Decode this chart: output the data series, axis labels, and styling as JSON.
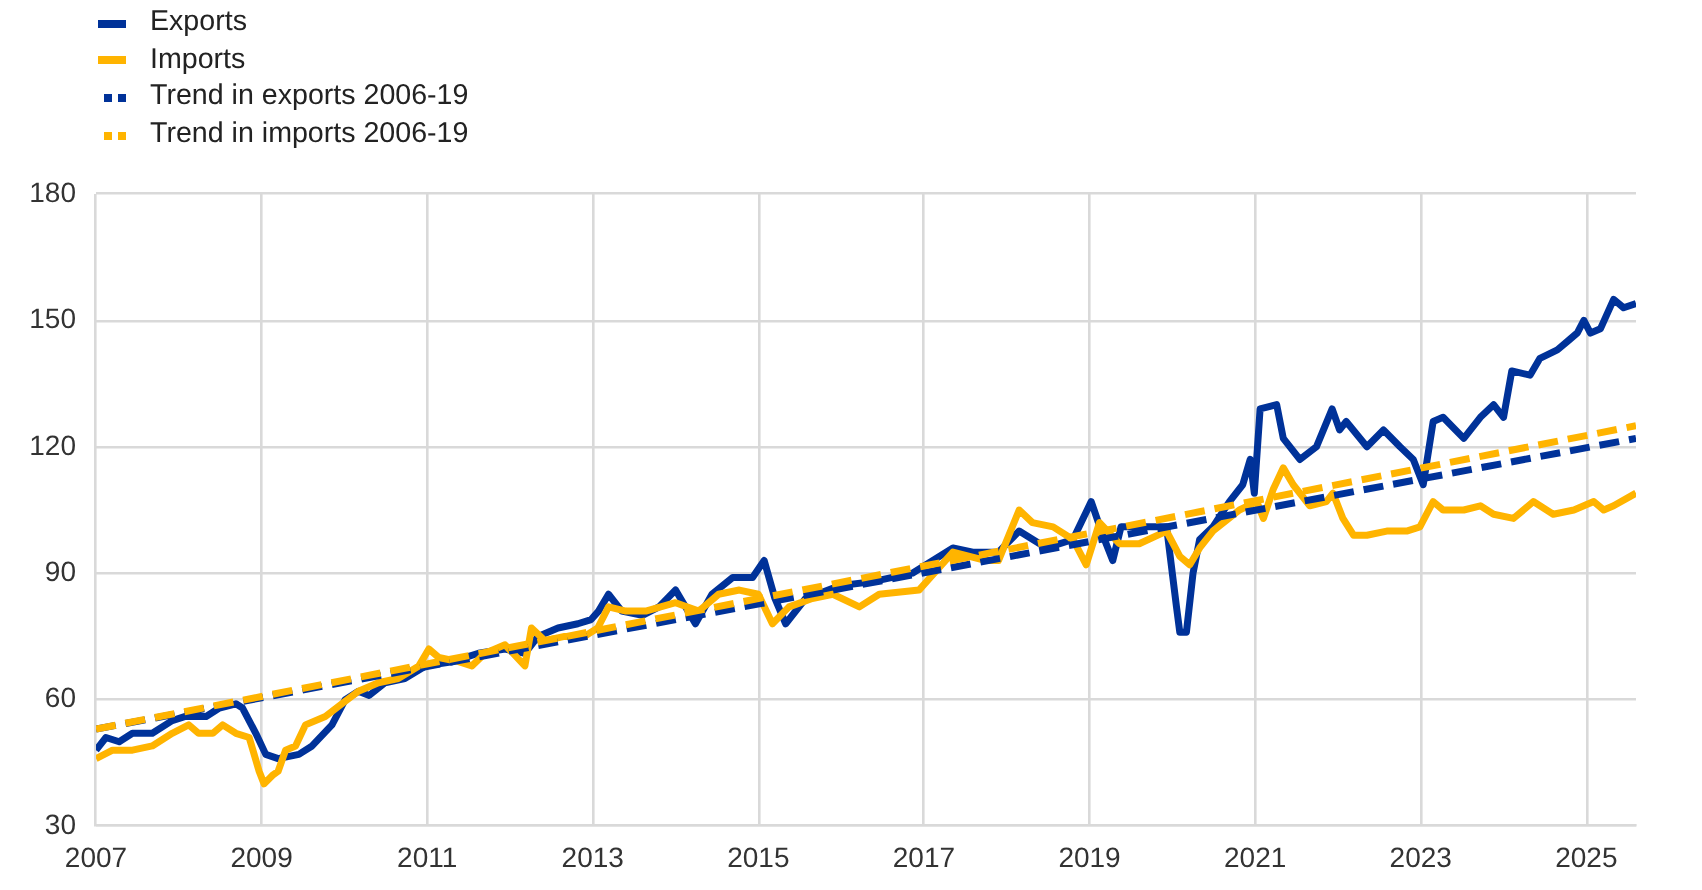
{
  "chart_data": {
    "type": "line",
    "legend": "top left",
    "grid": true,
    "xlim": [
      2007,
      2025.6
    ],
    "xticks": [
      2007,
      2009,
      2011,
      2013,
      2015,
      2017,
      2019,
      2021,
      2023,
      2025
    ],
    "ylim": [
      30,
      180
    ],
    "yticks": [
      30,
      60,
      90,
      120,
      150,
      180
    ],
    "series": [
      {
        "name": "Exports",
        "color": "#003299",
        "x": [
          2007.0,
          2007.12,
          2007.28,
          2007.44,
          2007.68,
          2007.92,
          2008.08,
          2008.33,
          2008.49,
          2008.69,
          2008.77,
          2008.93,
          2009.05,
          2009.2,
          2009.45,
          2009.61,
          2009.85,
          2010.01,
          2010.17,
          2010.3,
          2010.49,
          2010.73,
          2010.98,
          2011.3,
          2011.62,
          2011.94,
          2012.18,
          2012.34,
          2012.58,
          2012.82,
          2012.98,
          2013.07,
          2013.19,
          2013.35,
          2013.6,
          2013.8,
          2014.0,
          2014.24,
          2014.44,
          2014.69,
          2014.93,
          2015.07,
          2015.2,
          2015.33,
          2015.57,
          2015.98,
          2016.38,
          2016.86,
          2017.35,
          2017.59,
          2017.9,
          2018.15,
          2018.48,
          2018.8,
          2019.02,
          2019.16,
          2019.28,
          2019.38,
          2019.69,
          2019.93,
          2020.05,
          2020.09,
          2020.17,
          2020.25,
          2020.33,
          2020.49,
          2020.69,
          2020.85,
          2020.94,
          2020.99,
          2021.06,
          2021.26,
          2021.34,
          2021.54,
          2021.74,
          2021.93,
          2022.02,
          2022.1,
          2022.35,
          2022.55,
          2022.75,
          2022.91,
          2023.03,
          2023.15,
          2023.27,
          2023.52,
          2023.72,
          2023.88,
          2024.0,
          2024.1,
          2024.32,
          2024.44,
          2024.65,
          2024.77,
          2024.89,
          2024.97,
          2025.05,
          2025.17,
          2025.33,
          2025.45,
          2025.6
        ],
        "values": [
          48,
          51,
          50,
          52,
          52,
          55,
          56,
          56,
          58,
          59,
          58,
          52,
          47,
          46,
          47,
          49,
          54,
          60,
          62,
          61,
          64,
          65,
          68,
          69,
          71,
          72,
          71,
          75,
          77,
          78,
          79,
          81,
          85,
          81,
          80,
          82,
          86,
          78,
          85,
          89,
          89,
          93,
          84,
          78,
          84,
          87,
          88,
          90,
          96,
          95,
          95,
          100,
          96,
          98,
          107,
          99,
          93,
          101,
          101,
          101,
          82,
          76,
          76,
          90,
          98,
          101,
          107,
          111,
          117,
          109,
          129,
          130,
          122,
          117,
          120,
          129,
          124,
          126,
          120,
          124,
          120,
          117,
          111,
          126,
          127,
          122,
          127,
          130,
          127,
          138,
          137,
          141,
          143,
          145,
          147,
          150,
          147,
          148,
          155,
          153,
          154
        ]
      },
      {
        "name": "Imports",
        "color": "#ffb400",
        "x": [
          2007.0,
          2007.2,
          2007.44,
          2007.68,
          2007.92,
          2008.12,
          2008.24,
          2008.41,
          2008.53,
          2008.69,
          2008.85,
          2008.97,
          2009.03,
          2009.13,
          2009.2,
          2009.29,
          2009.41,
          2009.53,
          2009.77,
          2009.97,
          2010.17,
          2010.41,
          2010.65,
          2010.9,
          2011.02,
          2011.14,
          2011.38,
          2011.54,
          2011.7,
          2011.94,
          2012.18,
          2012.26,
          2012.42,
          2012.66,
          2012.9,
          2013.06,
          2013.19,
          2013.4,
          2013.64,
          2014.0,
          2014.28,
          2014.52,
          2014.77,
          2015.0,
          2015.17,
          2015.37,
          2015.65,
          2015.9,
          2016.22,
          2016.46,
          2016.94,
          2017.35,
          2017.75,
          2017.9,
          2018.15,
          2018.31,
          2018.56,
          2018.8,
          2018.96,
          2019.12,
          2019.36,
          2019.6,
          2019.93,
          2020.09,
          2020.21,
          2020.33,
          2020.49,
          2020.81,
          2021.02,
          2021.1,
          2021.22,
          2021.34,
          2021.46,
          2021.66,
          2021.86,
          2021.94,
          2022.06,
          2022.19,
          2022.35,
          2022.59,
          2022.83,
          2022.99,
          2023.15,
          2023.27,
          2023.52,
          2023.72,
          2023.88,
          2024.12,
          2024.36,
          2024.6,
          2024.85,
          2025.09,
          2025.21,
          2025.33,
          2025.6
        ],
        "values": [
          46,
          48,
          48,
          49,
          52,
          54,
          52,
          52,
          54,
          52,
          51,
          43,
          40,
          42,
          43,
          48,
          49,
          54,
          56,
          59,
          62,
          64,
          65,
          68,
          72,
          70,
          69,
          68,
          71,
          73,
          68,
          77,
          74,
          75,
          75,
          77,
          82,
          81,
          81,
          83,
          81,
          85,
          86,
          85,
          78,
          82,
          84,
          85,
          82,
          85,
          86,
          95,
          93,
          93,
          105,
          102,
          101,
          98,
          92,
          102,
          97,
          97,
          100,
          94,
          92,
          96,
          100,
          105,
          107,
          103,
          110,
          115,
          111,
          106,
          107,
          109,
          103,
          99,
          99,
          100,
          100,
          101,
          107,
          105,
          105,
          106,
          104,
          103,
          107,
          104,
          105,
          107,
          105,
          106,
          109
        ]
      },
      {
        "name": "Trend in exports 2006-19",
        "color": "#003299",
        "line_style": "dashed",
        "x": [
          2007,
          2025.6
        ],
        "values": [
          53,
          122
        ]
      },
      {
        "name": "Trend in imports 2006-19",
        "color": "#ffb400",
        "line_style": "dashed",
        "x": [
          2007,
          2025.6
        ],
        "values": [
          53,
          125
        ]
      }
    ]
  }
}
